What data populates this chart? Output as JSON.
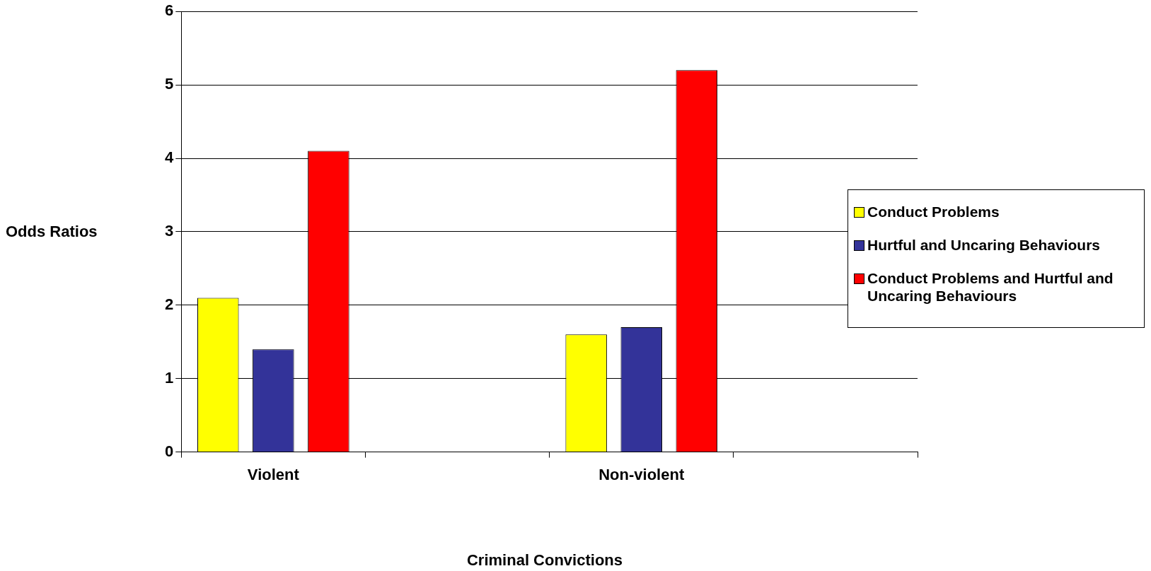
{
  "chart_data": {
    "type": "bar",
    "xlabel": "Criminal Convictions",
    "ylabel": "Odds Ratios",
    "categories": [
      "Violent",
      null,
      "Non-violent",
      null
    ],
    "series": [
      {
        "name": "Conduct Problems",
        "color": "#ffff00",
        "values": [
          2.1,
          null,
          1.6,
          null
        ]
      },
      {
        "name": "Hurtful and Uncaring Behaviours",
        "color": "#333399",
        "values": [
          1.4,
          null,
          1.7,
          null
        ]
      },
      {
        "name": "Conduct Problems and Hurtful and Uncaring Behaviours",
        "color": "#ff0000",
        "values": [
          4.1,
          null,
          5.2,
          null
        ]
      }
    ],
    "ylim": [
      0,
      6
    ],
    "yticks": [
      0,
      1,
      2,
      3,
      4,
      5,
      6
    ],
    "grid": "y",
    "legend": "right"
  }
}
